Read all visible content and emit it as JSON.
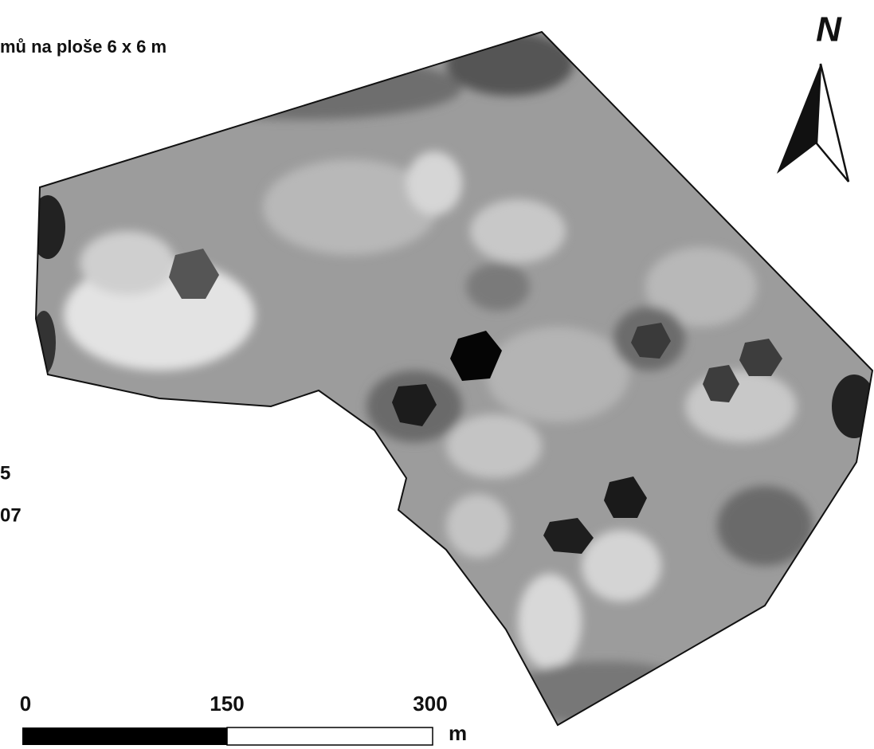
{
  "title": "mů na ploše 6 x 6 m",
  "north_label": "N",
  "legend": {
    "labels": [
      "5",
      "07"
    ]
  },
  "scale_bar": {
    "ticks": [
      "0",
      "150",
      "300"
    ],
    "unit": "m"
  }
}
